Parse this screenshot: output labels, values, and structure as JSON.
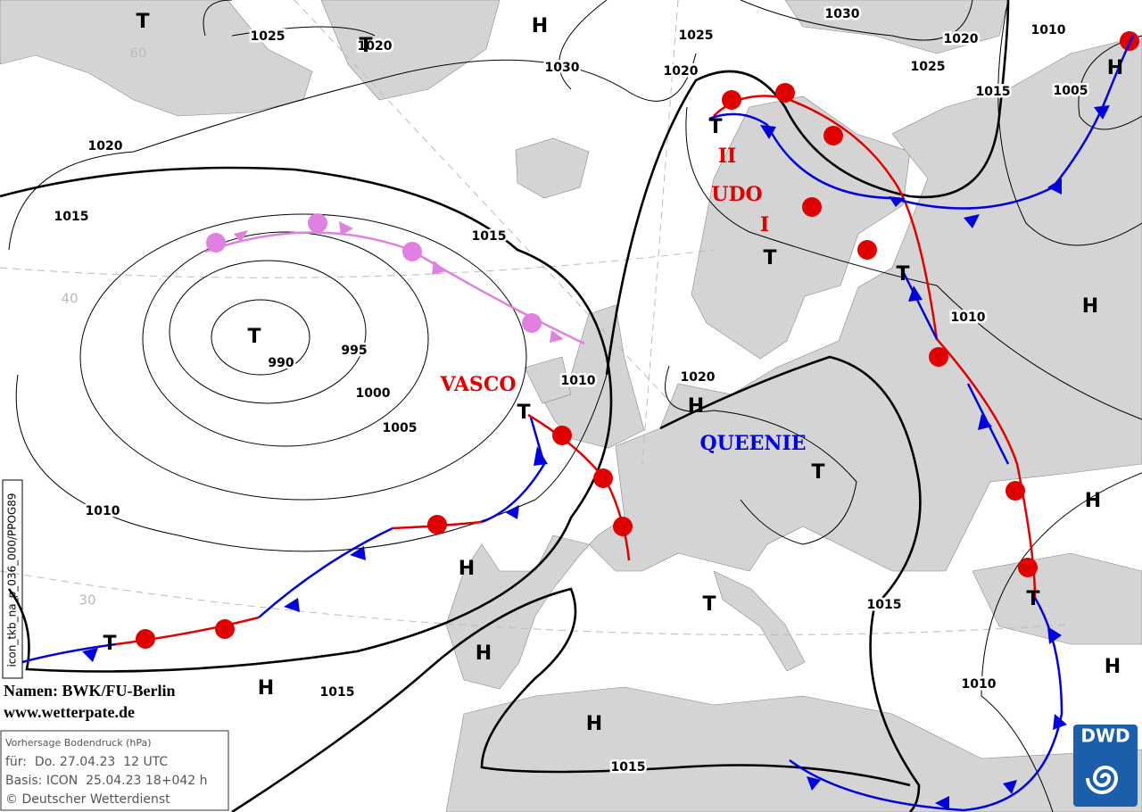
{
  "isobar_labels": [
    "1025",
    "1020",
    "1030",
    "1030",
    "1025",
    "1020",
    "1020",
    "1010",
    "1025",
    "1015",
    "1005",
    "1020",
    "1015",
    "1015",
    "990",
    "995",
    "1000",
    "1005",
    "1010",
    "1020",
    "1010",
    "1010",
    "1015",
    "1010",
    "1015",
    "1015"
  ],
  "pressure_centers": [
    "T",
    "H",
    "T",
    "T",
    "T",
    "T",
    "T",
    "T",
    "H",
    "H",
    "H",
    "T",
    "H",
    "H",
    "T",
    "T",
    "T",
    "H",
    "H",
    "H",
    "H"
  ],
  "system_names": [
    "VASCO",
    "UDO",
    "I",
    "II",
    "QUEENIE"
  ],
  "latitude_labels": [
    "60",
    "40",
    "30"
  ],
  "credits": {
    "names": "Namen: BWK/FU-Berlin",
    "url": "www.wetterpate.de"
  },
  "info_box": {
    "title": "Vorhersage Bodendruck (hPa)",
    "valid": "für:  Do. 27.04.23  12 UTC",
    "basis": "Basis: ICON  25.04.23 18+042 h",
    "copyright": "© Deutscher Wetterdienst"
  },
  "product_code": "icon_tkb_na_p_036_000/PPOG89",
  "logo": "DWD"
}
